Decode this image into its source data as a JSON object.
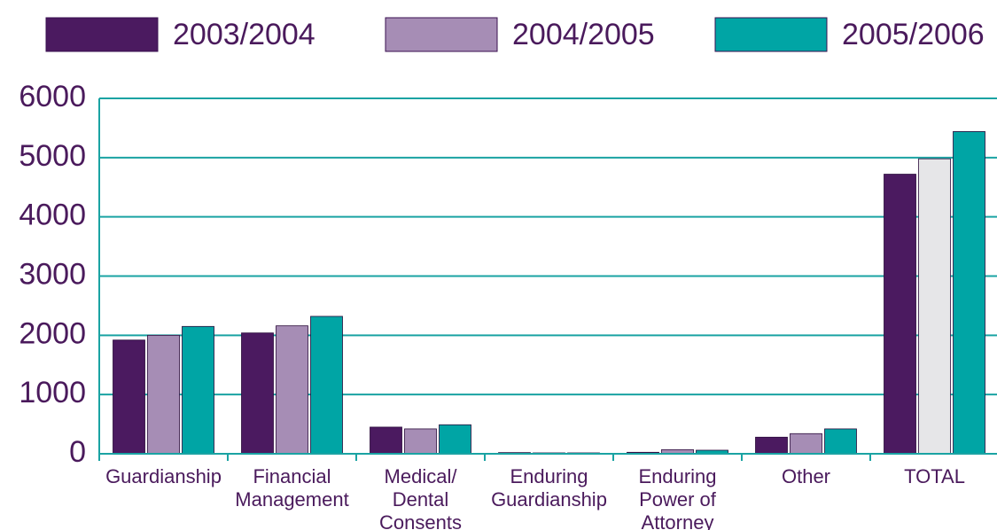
{
  "chart_data": {
    "type": "bar",
    "categories": [
      [
        "Guardianship"
      ],
      [
        "Financial",
        "Management"
      ],
      [
        "Medical/",
        "Dental",
        "Consents"
      ],
      [
        "Enduring",
        "Guardianship"
      ],
      [
        "Enduring",
        "Power of",
        "Attorney"
      ],
      [
        "Other"
      ],
      [
        "TOTAL"
      ]
    ],
    "series": [
      {
        "name": "2003/2004",
        "color": "#4b1a60",
        "values": [
          1920,
          2040,
          450,
          20,
          25,
          280,
          4720
        ]
      },
      {
        "name": "2004/2005",
        "color": "#a68db5",
        "colors": [
          "#a68db5",
          "#a68db5",
          "#a68db5",
          "#a68db5",
          "#a68db5",
          "#a68db5",
          "#e6e6e8"
        ],
        "values": [
          2000,
          2160,
          420,
          15,
          70,
          340,
          4980
        ]
      },
      {
        "name": "2005/2006",
        "color": "#00a5a5",
        "values": [
          2150,
          2320,
          490,
          15,
          60,
          420,
          5440
        ]
      }
    ],
    "ylim": [
      0,
      6000
    ],
    "yticks": [
      0,
      1000,
      2000,
      3000,
      4000,
      5000,
      6000
    ],
    "grid": true,
    "legend": "top"
  }
}
